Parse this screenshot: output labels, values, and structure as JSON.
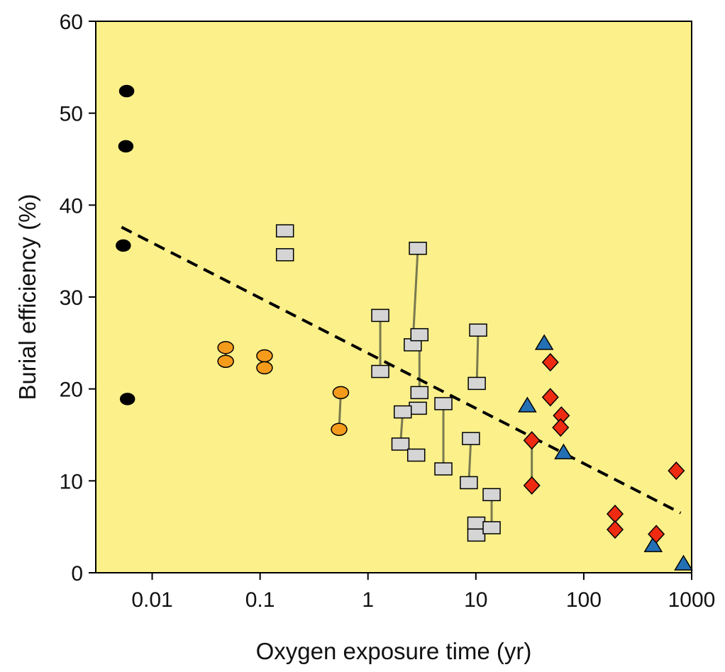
{
  "chart_data": {
    "type": "scatter",
    "title": "",
    "xlabel": "Oxygen exposure time (yr)",
    "ylabel": "Burial efficiency (%)",
    "x_scale": "log",
    "xlim": [
      0.003,
      1000
    ],
    "ylim": [
      0,
      60
    ],
    "x_ticks": [
      0.01,
      0.1,
      1,
      10,
      100,
      1000
    ],
    "x_tick_labels": [
      "0.01",
      "0.1",
      "1",
      "10",
      "100",
      "1000"
    ],
    "y_ticks": [
      0,
      10,
      20,
      30,
      40,
      50,
      60
    ],
    "y_tick_labels": [
      "0",
      "10",
      "20",
      "30",
      "40",
      "50",
      "60"
    ],
    "background_color": "#fbf08a",
    "grid": false,
    "legend": "none",
    "series": [
      {
        "marker": "circle",
        "color": "#000000",
        "points": [
          [
            0.0058,
            52.4
          ],
          [
            0.0057,
            46.4
          ],
          [
            0.0054,
            35.6
          ],
          [
            0.0059,
            18.9
          ]
        ],
        "links": []
      },
      {
        "marker": "ellipse",
        "color": "#f59b1b",
        "points": [
          [
            0.048,
            24.5
          ],
          [
            0.048,
            23.0
          ],
          [
            0.11,
            23.6
          ],
          [
            0.11,
            22.3
          ],
          [
            0.56,
            19.6
          ],
          [
            0.54,
            15.6
          ]
        ],
        "links": [
          [
            0,
            1
          ],
          [
            2,
            3
          ],
          [
            4,
            5
          ]
        ]
      },
      {
        "marker": "square",
        "color": "#d5d5d5",
        "points": [
          [
            0.17,
            37.2
          ],
          [
            0.17,
            34.6
          ],
          [
            1.3,
            28.0
          ],
          [
            1.3,
            21.9
          ],
          [
            2.9,
            35.3
          ],
          [
            2.6,
            24.8
          ],
          [
            3.0,
            25.9
          ],
          [
            3.0,
            19.6
          ],
          [
            2.9,
            17.9
          ],
          [
            2.1,
            17.5
          ],
          [
            2.0,
            14.0
          ],
          [
            2.8,
            12.8
          ],
          [
            5.0,
            18.4
          ],
          [
            5.0,
            11.3
          ],
          [
            9.0,
            14.6
          ],
          [
            8.6,
            9.8
          ],
          [
            10.5,
            26.4
          ],
          [
            10.2,
            20.6
          ],
          [
            14.0,
            8.5
          ],
          [
            10.1,
            5.4
          ],
          [
            10.1,
            4.1
          ],
          [
            14.0,
            4.9
          ]
        ],
        "links": [
          [
            2,
            3
          ],
          [
            4,
            5
          ],
          [
            6,
            7
          ],
          [
            9,
            10
          ],
          [
            12,
            13
          ],
          [
            14,
            15
          ],
          [
            16,
            17
          ],
          [
            18,
            21
          ]
        ]
      },
      {
        "marker": "triangle",
        "color": "#2470b5",
        "points": [
          [
            43,
            25.0
          ],
          [
            30,
            18.2
          ],
          [
            65,
            13.1
          ],
          [
            440,
            3.0
          ],
          [
            840,
            1.0
          ]
        ],
        "links": []
      },
      {
        "marker": "diamond",
        "color": "#ee2b11",
        "points": [
          [
            49,
            22.9
          ],
          [
            49,
            19.1
          ],
          [
            33,
            14.4
          ],
          [
            33,
            9.5
          ],
          [
            62,
            17.1
          ],
          [
            61,
            15.8
          ],
          [
            195,
            6.4
          ],
          [
            195,
            4.7
          ],
          [
            470,
            4.2
          ],
          [
            720,
            11.1
          ]
        ],
        "links": [
          [
            2,
            3
          ]
        ]
      }
    ],
    "trendline": {
      "style": "dashed",
      "color": "#000000",
      "points": [
        [
          0.0052,
          37.6
        ],
        [
          790,
          6.5
        ]
      ]
    }
  }
}
